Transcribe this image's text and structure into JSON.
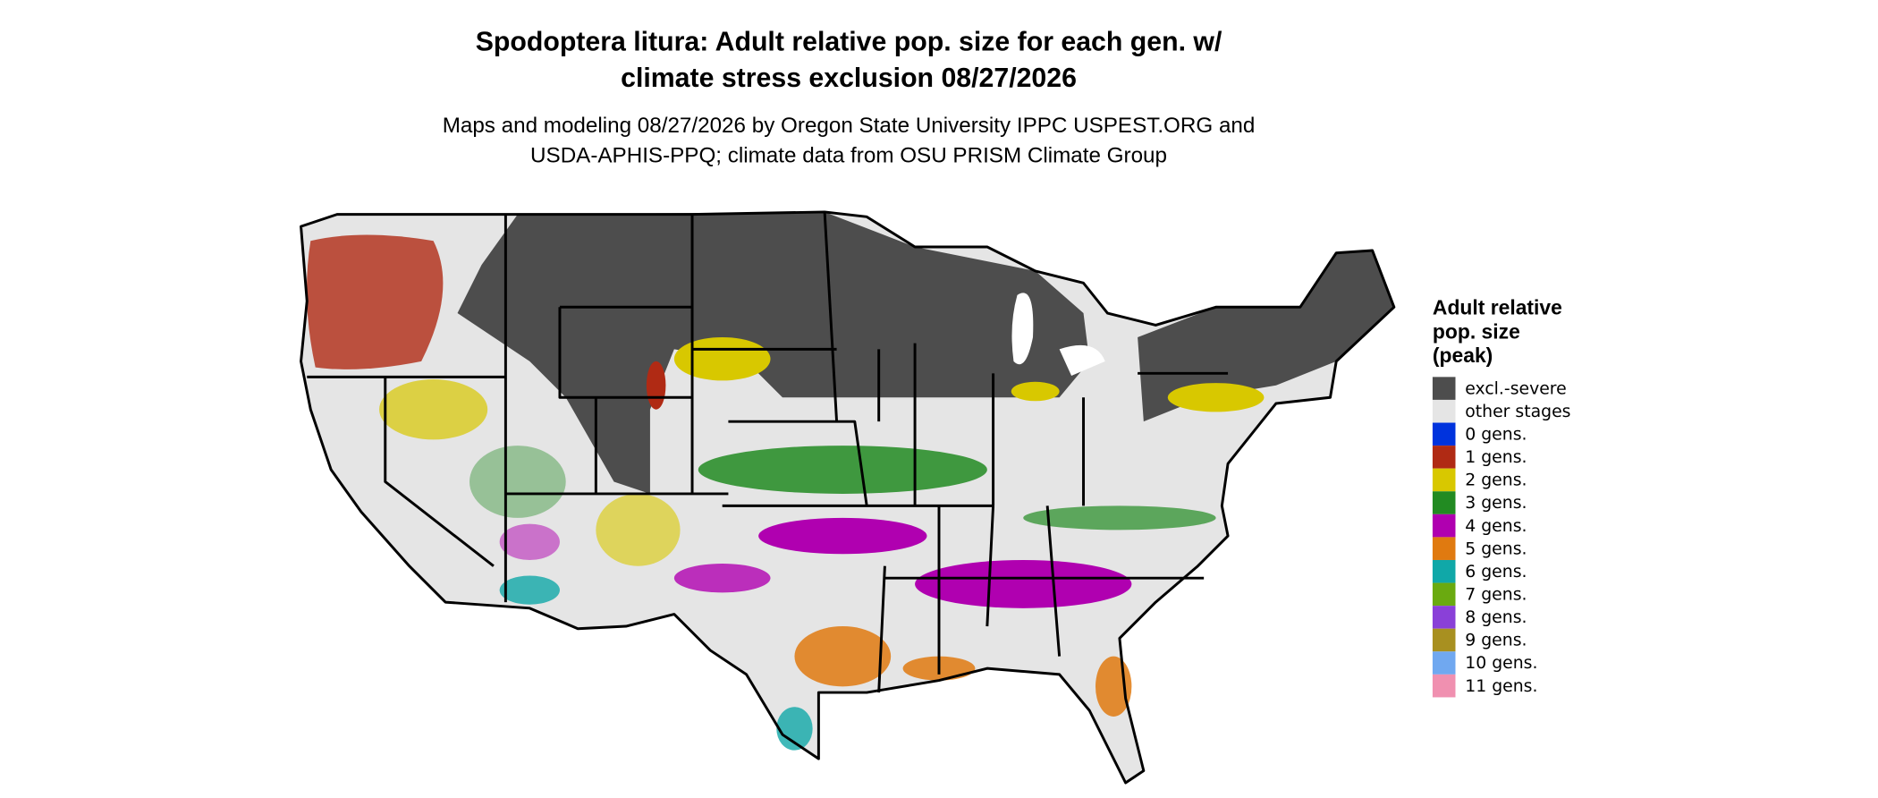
{
  "title": [
    "Spodoptera litura: Adult relative pop. size for each gen. w/",
    "climate stress exclusion 08/27/2026"
  ],
  "subtitle": [
    "Maps and modeling 08/27/2026 by Oregon State University IPPC USPEST.ORG and",
    "USDA-APHIS-PPQ; climate data from OSU PRISM Climate Group"
  ],
  "legend": {
    "title": [
      "Adult relative",
      "pop. size",
      "(peak)"
    ],
    "items": [
      {
        "label": "excl.-severe",
        "color": "#4d4d4d"
      },
      {
        "label": "other stages",
        "color": "#e5e5e5"
      },
      {
        "label": "0 gens.",
        "color": "#0033dd"
      },
      {
        "label": "1 gens.",
        "color": "#b02a14"
      },
      {
        "label": "2 gens.",
        "color": "#d8c800"
      },
      {
        "label": "3 gens.",
        "color": "#228b22"
      },
      {
        "label": "4 gens.",
        "color": "#b000b0"
      },
      {
        "label": "5 gens.",
        "color": "#e07a10"
      },
      {
        "label": "6 gens.",
        "color": "#10a8a8"
      },
      {
        "label": "7 gens.",
        "color": "#6aaa10"
      },
      {
        "label": "8 gens.",
        "color": "#8a40d8"
      },
      {
        "label": "9 gens.",
        "color": "#a89020"
      },
      {
        "label": "10 gens.",
        "color": "#70a8f0"
      },
      {
        "label": "11 gens.",
        "color": "#f090b0"
      }
    ]
  }
}
